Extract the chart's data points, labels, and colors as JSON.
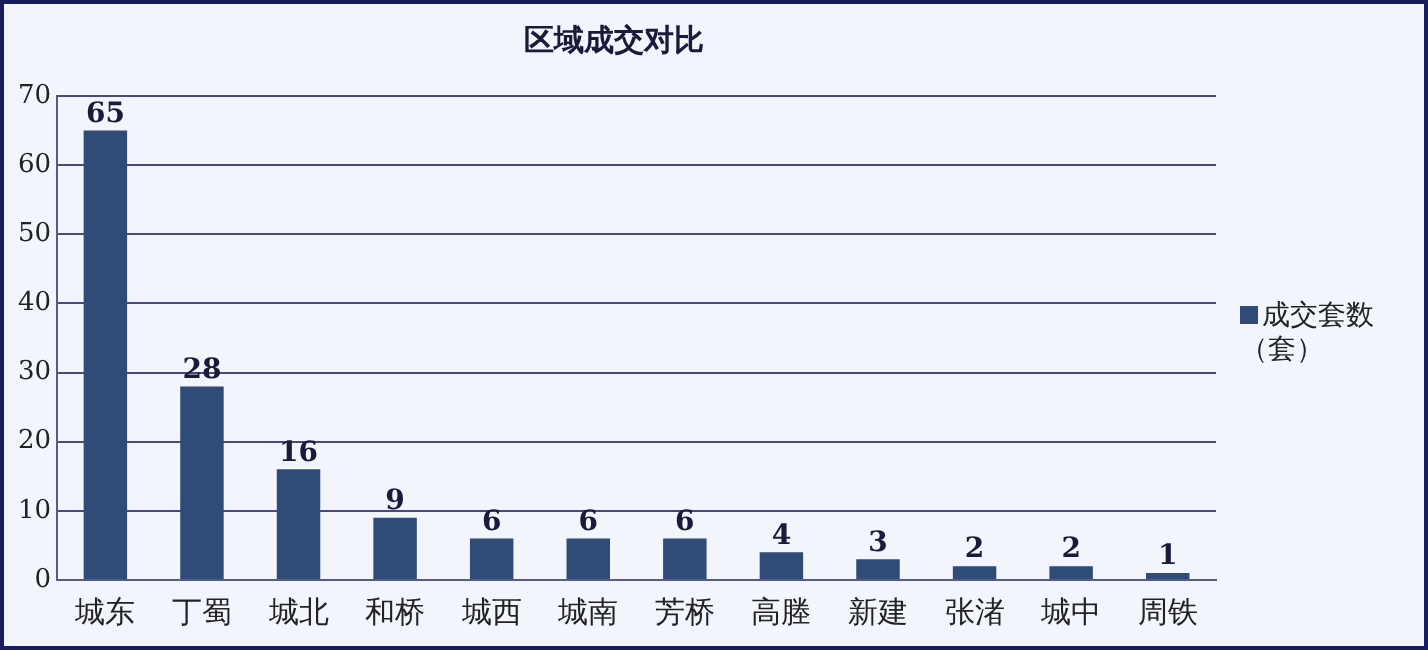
{
  "chart_data": {
    "type": "bar",
    "title": "区域成交对比",
    "categories": [
      "城东",
      "丁蜀",
      "城北",
      "和桥",
      "城西",
      "城南",
      "芳桥",
      "高塍",
      "新建",
      "张渚",
      "城中",
      "周铁"
    ],
    "series": [
      {
        "name": "成交套数（套）",
        "color": "#2f4b77",
        "values": [
          65,
          28,
          16,
          9,
          6,
          6,
          6,
          4,
          3,
          2,
          2,
          1
        ]
      }
    ],
    "ylim": [
      0,
      70
    ],
    "yticks": [
      0,
      10,
      20,
      30,
      40,
      50,
      60,
      70
    ],
    "grid": "y",
    "legend": "right",
    "data_labels": true
  }
}
